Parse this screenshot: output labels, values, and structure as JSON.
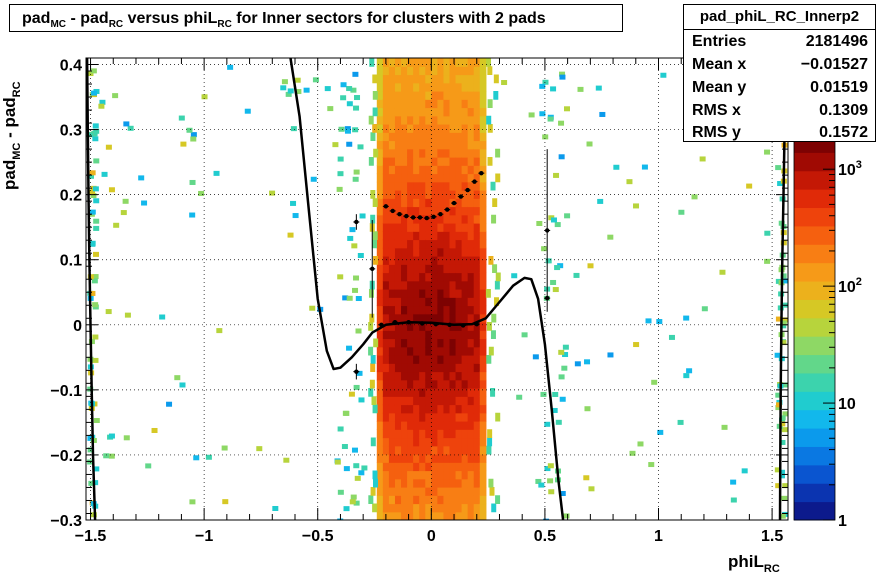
{
  "title": {
    "parts": [
      "pad",
      "MC",
      " - pad",
      "RC",
      " versus phiL",
      "RC",
      " for Inner sectors for clusters with 2 pads"
    ]
  },
  "stats": {
    "name": "pad_phiL_RC_Innerp2",
    "rows": [
      {
        "label": "Entries",
        "value": "2181496"
      },
      {
        "label": "Mean x",
        "value": "−0.01527"
      },
      {
        "label": "Mean y",
        "value": "0.01519"
      },
      {
        "label": "RMS x",
        "value": "0.1309"
      },
      {
        "label": "RMS y",
        "value": "0.1572"
      }
    ]
  },
  "xtitle": {
    "main": "phiL",
    "sub": "RC"
  },
  "ytitle": {
    "main1": "pad",
    "sub1": "MC",
    "main2": " - pad",
    "sub2": "RC"
  },
  "chart_data": {
    "type": "heatmap",
    "title": "pad_MC - pad_RC versus phiL_RC for Inner sectors for clusters with 2 pads",
    "xlabel": "phiL_RC",
    "ylabel": "pad_MC - pad_RC",
    "xlim": [
      -1.52,
      1.57
    ],
    "ylim": [
      -0.3,
      0.41
    ],
    "x_ticks": [
      -1.5,
      -1,
      -0.5,
      0,
      0.5,
      1,
      1.5
    ],
    "x_tick_labels": [
      "−1.5",
      "−1",
      "−0.5",
      "0",
      "0.5",
      "1",
      "1.5"
    ],
    "y_ticks": [
      -0.3,
      -0.2,
      -0.1,
      0,
      0.1,
      0.2,
      0.3,
      0.4
    ],
    "y_tick_labels": [
      "−0.3",
      "−0.2",
      "−0.1",
      "0",
      "0.1",
      "0.2",
      "0.3",
      "0.4"
    ],
    "z_scale": "log",
    "z_range": [
      1,
      2000
    ],
    "z_tick_labels": [
      "1",
      "10",
      "10²",
      "10³"
    ],
    "grid": true,
    "dense_band_x": [
      -0.24,
      0.24
    ],
    "profile_rms": {
      "name": "RMS profile",
      "points": [
        {
          "x": -0.33,
          "y": 0.158,
          "err": 0.012
        },
        {
          "x": -0.26,
          "y": 0.086,
          "err": 0.075
        },
        {
          "x": -0.2,
          "y": 0.182
        },
        {
          "x": -0.17,
          "y": 0.175
        },
        {
          "x": -0.14,
          "y": 0.17
        },
        {
          "x": -0.11,
          "y": 0.167
        },
        {
          "x": -0.08,
          "y": 0.165
        },
        {
          "x": -0.05,
          "y": 0.165
        },
        {
          "x": -0.02,
          "y": 0.164
        },
        {
          "x": 0.01,
          "y": 0.166
        },
        {
          "x": 0.04,
          "y": 0.17
        },
        {
          "x": 0.07,
          "y": 0.177
        },
        {
          "x": 0.1,
          "y": 0.187
        },
        {
          "x": 0.13,
          "y": 0.197
        },
        {
          "x": 0.16,
          "y": 0.207
        },
        {
          "x": 0.19,
          "y": 0.22
        },
        {
          "x": 0.22,
          "y": 0.233
        },
        {
          "x": 0.51,
          "y": 0.145,
          "err": 0.125
        },
        {
          "x": 0.51,
          "y": 0.041
        }
      ]
    },
    "profile_mean": {
      "name": "mean profile",
      "points": [
        {
          "x": -0.33,
          "y": -0.072,
          "err": 0.012
        },
        {
          "x": -0.22,
          "y": 0.0
        },
        {
          "x": -0.16,
          "y": 0.004
        },
        {
          "x": -0.1,
          "y": 0.004
        },
        {
          "x": -0.04,
          "y": 0.002
        },
        {
          "x": 0.02,
          "y": 0.001
        },
        {
          "x": 0.08,
          "y": 0.0
        },
        {
          "x": 0.14,
          "y": -0.001
        },
        {
          "x": 0.2,
          "y": 0.001
        }
      ]
    },
    "fit_curves": [
      {
        "name": "mean fit",
        "points": [
          [
            -0.62,
            0.41
          ],
          [
            -0.58,
            0.32
          ],
          [
            -0.54,
            0.18
          ],
          [
            -0.5,
            0.04
          ],
          [
            -0.46,
            -0.04
          ],
          [
            -0.43,
            -0.068
          ],
          [
            -0.4,
            -0.066
          ],
          [
            -0.35,
            -0.05
          ],
          [
            -0.3,
            -0.03
          ],
          [
            -0.26,
            -0.012
          ],
          [
            -0.2,
            0.0
          ],
          [
            -0.1,
            0.004
          ],
          [
            0.0,
            0.003
          ],
          [
            0.1,
            0.0
          ],
          [
            0.18,
            0.001
          ],
          [
            0.24,
            0.01
          ],
          [
            0.3,
            0.035
          ],
          [
            0.36,
            0.06
          ],
          [
            0.41,
            0.072
          ],
          [
            0.44,
            0.07
          ],
          [
            0.47,
            0.04
          ],
          [
            0.5,
            -0.03
          ],
          [
            0.53,
            -0.13
          ],
          [
            0.56,
            -0.24
          ],
          [
            0.58,
            -0.3
          ]
        ]
      },
      {
        "name": "edge fit left",
        "points": [
          [
            -1.515,
            0.41
          ],
          [
            -1.512,
            0.3
          ],
          [
            -1.509,
            0.2
          ],
          [
            -1.505,
            0.1
          ],
          [
            -1.5,
            0.0
          ],
          [
            -1.495,
            -0.1
          ],
          [
            -1.489,
            -0.2
          ],
          [
            -1.48,
            -0.3
          ]
        ]
      },
      {
        "name": "edge fit right",
        "points": [
          [
            1.535,
            -0.3
          ],
          [
            1.536,
            -0.2
          ],
          [
            1.538,
            -0.1
          ],
          [
            1.541,
            0.0
          ],
          [
            1.545,
            0.1
          ],
          [
            1.55,
            0.2
          ],
          [
            1.555,
            0.3
          ],
          [
            1.56,
            0.36
          ]
        ]
      }
    ]
  }
}
